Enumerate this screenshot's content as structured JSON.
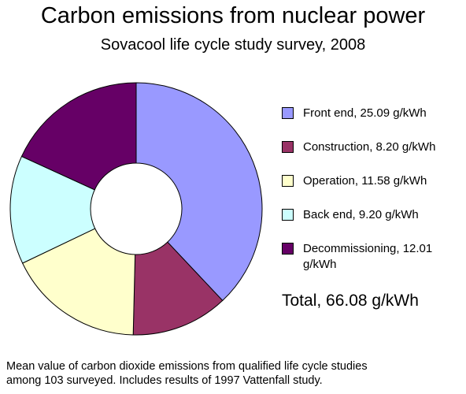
{
  "chart_data": {
    "type": "pie",
    "title": "Carbon emissions from nuclear power",
    "subtitle": "Sovacool life cycle study survey, 2008",
    "categories": [
      "Front end, 25.09 g/kWh",
      "Construction, 8.20 g/kWh",
      "Operation, 11.58 g/kWh",
      "Back end, 9.20 g/kWh",
      "Decommissioning, 12.01 g/kWh"
    ],
    "values": [
      25.09,
      8.2,
      11.58,
      9.2,
      12.01
    ],
    "colors": [
      "#9999ff",
      "#993366",
      "#ffffcc",
      "#ccffff",
      "#660066"
    ],
    "total": "Total, 66.08 g/kWh",
    "note": [
      "Mean value of carbon dioxide emissions from qualified life cycle studies",
      "among 103 surveyed. Includes results of 1997 Vattenfall study."
    ]
  }
}
